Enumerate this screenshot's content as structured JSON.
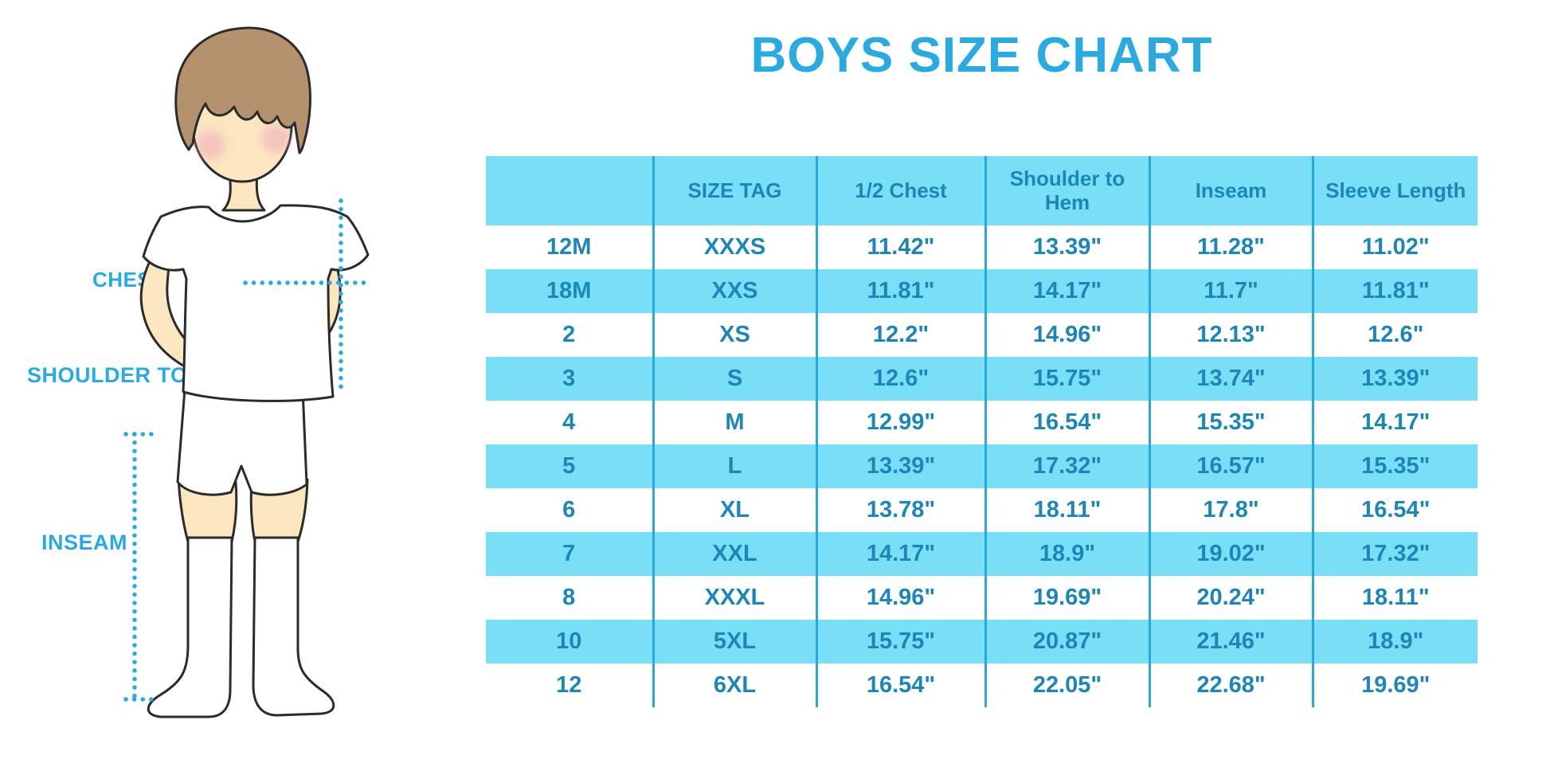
{
  "title": "BOYS SIZE CHART",
  "illustration": {
    "labels": {
      "chest": "CHEST",
      "shoulder_to_hem": "SHOULDER TO HEM",
      "inseam": "INSEAM"
    }
  },
  "colors": {
    "accent_blue": "#29ABE2",
    "band_blue": "#79DFF7",
    "table_text_blue": "#1D86B8",
    "grid_line_blue": "#2AA7DB",
    "hair_brown": "#B5926E",
    "skin_tone": "#FBE6C0"
  },
  "chart_data": {
    "type": "table",
    "title": "BOYS SIZE CHART",
    "columns": [
      "",
      "SIZE TAG",
      "1/2 Chest",
      "Shoulder to Hem",
      "Inseam",
      "Sleeve Length"
    ],
    "rows": [
      [
        "12M",
        "XXXS",
        "11.42\"",
        "13.39\"",
        "11.28\"",
        "11.02\""
      ],
      [
        "18M",
        "XXS",
        "11.81\"",
        "14.17\"",
        "11.7\"",
        "11.81\""
      ],
      [
        "2",
        "XS",
        "12.2\"",
        "14.96\"",
        "12.13\"",
        "12.6\""
      ],
      [
        "3",
        "S",
        "12.6\"",
        "15.75\"",
        "13.74\"",
        "13.39\""
      ],
      [
        "4",
        "M",
        "12.99\"",
        "16.54\"",
        "15.35\"",
        "14.17\""
      ],
      [
        "5",
        "L",
        "13.39\"",
        "17.32\"",
        "16.57\"",
        "15.35\""
      ],
      [
        "6",
        "XL",
        "13.78\"",
        "18.11\"",
        "17.8\"",
        "16.54\""
      ],
      [
        "7",
        "XXL",
        "14.17\"",
        "18.9\"",
        "19.02\"",
        "17.32\""
      ],
      [
        "8",
        "XXXL",
        "14.96\"",
        "19.69\"",
        "20.24\"",
        "18.11\""
      ],
      [
        "10",
        "5XL",
        "15.75\"",
        "20.87\"",
        "21.46\"",
        "18.9\""
      ],
      [
        "12",
        "6XL",
        "16.54\"",
        "22.05\"",
        "22.68\"",
        "19.69\""
      ]
    ]
  }
}
